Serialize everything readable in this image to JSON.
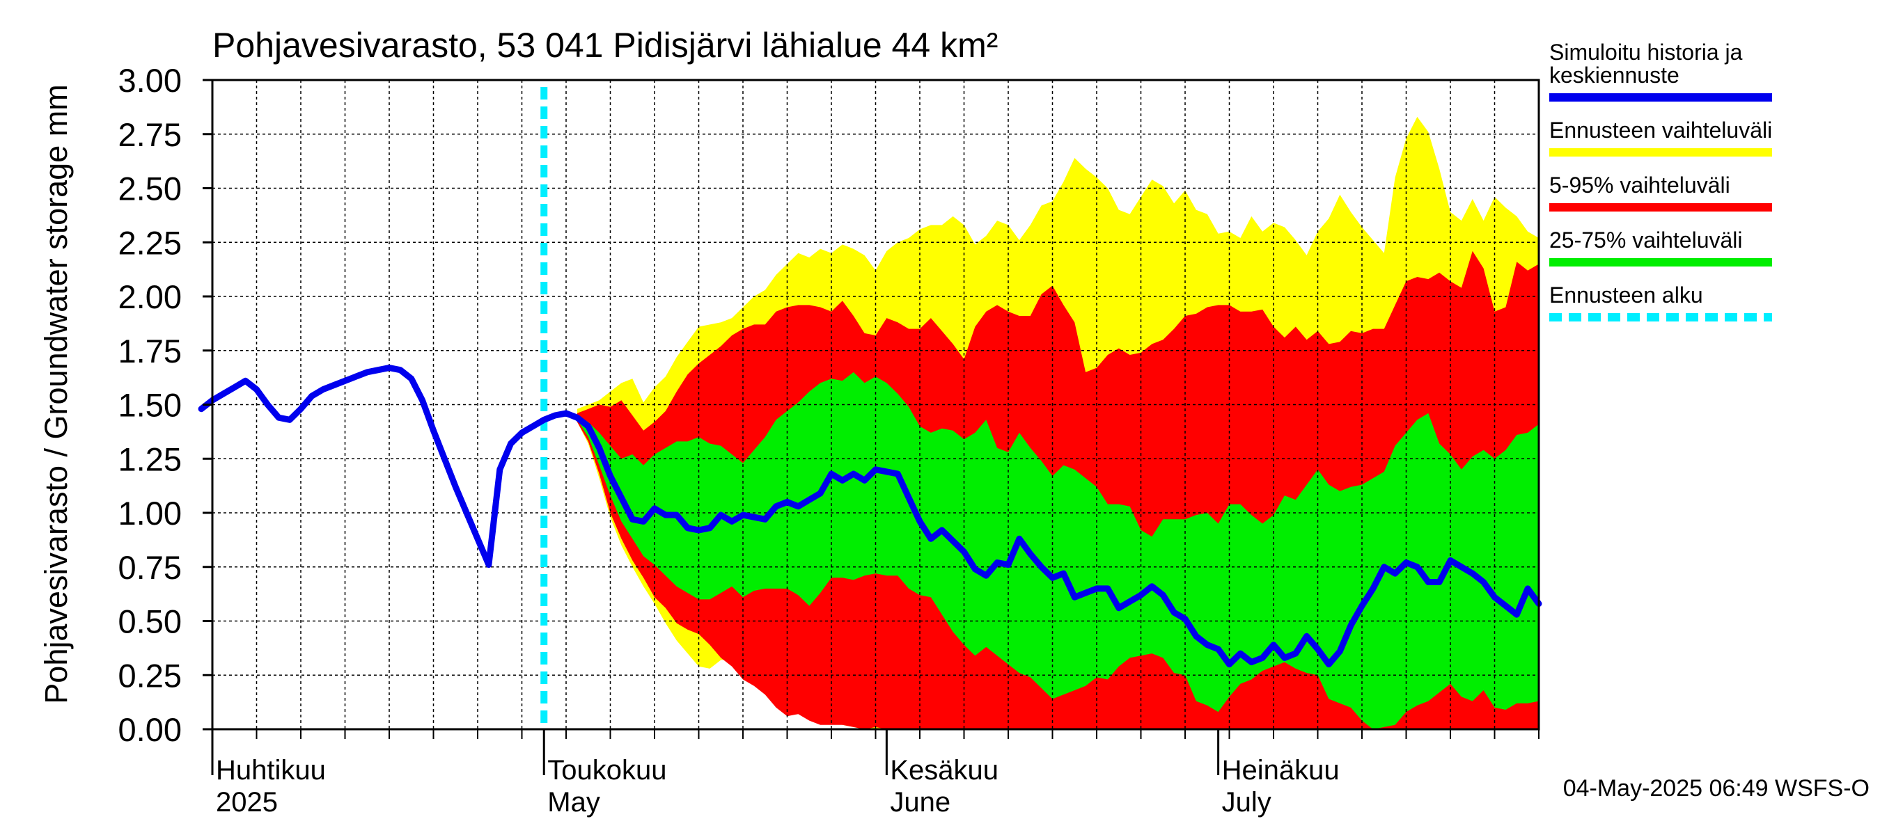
{
  "chart_data": {
    "type": "area",
    "title": "Pohjavesivarasto, 53 041 Pidisjärvi lähialue 44 km²",
    "ylabel": "Pohjavesivarasto / Groundwater storage   mm",
    "ylim": [
      0,
      3
    ],
    "yticks": [
      "0.00",
      "0.25",
      "0.50",
      "0.75",
      "1.00",
      "1.25",
      "1.50",
      "1.75",
      "2.00",
      "2.25",
      "2.50",
      "2.75",
      "3.00"
    ],
    "xlim": [
      0,
      120
    ],
    "grid": true,
    "months": [
      {
        "day": 0,
        "label1": "Huhtikuu",
        "label2": "2025"
      },
      {
        "day": 30,
        "label1": "Toukokuu",
        "label2": "May"
      },
      {
        "day": 61,
        "label1": "Kesäkuu",
        "label2": "June"
      },
      {
        "day": 91,
        "label1": "Heinäkuu",
        "label2": "July"
      }
    ],
    "forecast_start_day": 30,
    "legend_position": "right",
    "legend": [
      {
        "label": "Simuloitu historia ja keskiennuste",
        "line1": "Simuloitu historia ja",
        "line2": "keskiennuste",
        "color": "#0000ee",
        "style": "solid"
      },
      {
        "label": "Ennusteen vaihteluväli",
        "color": "#ffff00",
        "style": "solid"
      },
      {
        "label": "5-95% vaihteluväli",
        "color": "#ff0000",
        "style": "solid"
      },
      {
        "label": "25-75% vaihteluväli",
        "color": "#00ee00",
        "style": "solid"
      },
      {
        "label": "Ennusteen alku",
        "color": "#00eeff",
        "style": "dashed"
      }
    ],
    "timestamp": "04-May-2025 06:49 WSFS-O",
    "history": {
      "x": [
        -1,
        0,
        1,
        2,
        3,
        4,
        5,
        6,
        7,
        8,
        9,
        10,
        11,
        12,
        13,
        14,
        15,
        16,
        17,
        18,
        19,
        20,
        21,
        22,
        23,
        24,
        25,
        26,
        27,
        28,
        29,
        30,
        31,
        32,
        33
      ],
      "y": [
        1.48,
        1.52,
        1.55,
        1.58,
        1.61,
        1.57,
        1.5,
        1.44,
        1.43,
        1.48,
        1.54,
        1.57,
        1.59,
        1.61,
        1.63,
        1.65,
        1.66,
        1.67,
        1.66,
        1.62,
        1.52,
        1.38,
        1.25,
        1.12,
        1.0,
        0.88,
        0.76,
        1.2,
        1.32,
        1.37,
        1.4,
        1.43,
        1.45,
        1.46,
        1.44
      ]
    },
    "forecast": {
      "x": [
        33,
        34,
        35,
        36,
        37,
        38,
        39,
        40,
        41,
        42,
        43,
        44,
        45,
        46,
        47,
        48,
        49,
        50,
        51,
        52,
        53,
        54,
        55,
        56,
        57,
        58,
        59,
        60,
        61,
        62,
        63,
        64,
        65,
        66,
        67,
        68,
        69,
        70,
        71,
        72,
        73,
        74,
        75,
        76,
        77,
        78,
        79,
        80,
        81,
        82,
        83,
        84,
        85,
        86,
        87,
        88,
        89,
        90,
        91,
        92,
        93,
        94,
        95,
        96,
        97,
        98,
        99,
        100,
        101,
        102,
        103,
        104,
        105,
        106,
        107,
        108,
        109,
        110,
        111,
        112,
        113,
        114,
        115,
        116,
        117,
        118,
        119,
        120
      ],
      "ens_max": [
        1.48,
        1.5,
        1.52,
        1.56,
        1.6,
        1.62,
        1.51,
        1.58,
        1.63,
        1.72,
        1.79,
        1.86,
        1.87,
        1.88,
        1.9,
        1.95,
        2.0,
        2.03,
        2.1,
        2.15,
        2.2,
        2.18,
        2.22,
        2.2,
        2.24,
        2.22,
        2.19,
        2.12,
        2.21,
        2.25,
        2.27,
        2.31,
        2.33,
        2.33,
        2.37,
        2.33,
        2.24,
        2.28,
        2.35,
        2.33,
        2.26,
        2.33,
        2.42,
        2.44,
        2.53,
        2.64,
        2.59,
        2.55,
        2.5,
        2.4,
        2.38,
        2.46,
        2.54,
        2.51,
        2.43,
        2.49,
        2.4,
        2.38,
        2.29,
        2.3,
        2.27,
        2.37,
        2.3,
        2.34,
        2.32,
        2.26,
        2.19,
        2.3,
        2.36,
        2.47,
        2.39,
        2.32,
        2.26,
        2.2,
        2.55,
        2.73,
        2.83,
        2.76,
        2.59,
        2.39,
        2.35,
        2.45,
        2.35,
        2.46,
        2.41,
        2.37,
        2.3,
        2.27
      ],
      "p95": [
        1.46,
        1.48,
        1.5,
        1.49,
        1.52,
        1.45,
        1.38,
        1.42,
        1.47,
        1.56,
        1.64,
        1.69,
        1.73,
        1.77,
        1.82,
        1.85,
        1.87,
        1.87,
        1.93,
        1.95,
        1.96,
        1.96,
        1.95,
        1.93,
        1.98,
        1.91,
        1.83,
        1.82,
        1.9,
        1.88,
        1.85,
        1.85,
        1.9,
        1.84,
        1.78,
        1.71,
        1.86,
        1.93,
        1.96,
        1.93,
        1.91,
        1.91,
        2.01,
        2.05,
        1.96,
        1.88,
        1.65,
        1.67,
        1.73,
        1.76,
        1.73,
        1.74,
        1.78,
        1.8,
        1.85,
        1.91,
        1.92,
        1.95,
        1.96,
        1.96,
        1.93,
        1.93,
        1.94,
        1.86,
        1.81,
        1.86,
        1.8,
        1.84,
        1.78,
        1.79,
        1.84,
        1.83,
        1.85,
        1.85,
        1.96,
        2.07,
        2.09,
        2.08,
        2.11,
        2.07,
        2.04,
        2.21,
        2.13,
        1.93,
        1.95,
        2.16,
        2.12,
        2.15
      ],
      "p75": [
        1.45,
        1.42,
        1.37,
        1.31,
        1.25,
        1.27,
        1.22,
        1.27,
        1.3,
        1.33,
        1.33,
        1.35,
        1.32,
        1.31,
        1.27,
        1.23,
        1.29,
        1.35,
        1.43,
        1.47,
        1.51,
        1.56,
        1.6,
        1.62,
        1.61,
        1.65,
        1.6,
        1.63,
        1.6,
        1.55,
        1.49,
        1.4,
        1.37,
        1.39,
        1.38,
        1.34,
        1.37,
        1.43,
        1.3,
        1.28,
        1.37,
        1.3,
        1.24,
        1.17,
        1.22,
        1.2,
        1.16,
        1.12,
        1.04,
        1.04,
        1.03,
        0.92,
        0.89,
        0.97,
        0.97,
        0.97,
        0.99,
        1.0,
        0.95,
        1.04,
        1.04,
        0.99,
        0.95,
        0.99,
        1.08,
        1.06,
        1.13,
        1.2,
        1.13,
        1.1,
        1.12,
        1.13,
        1.16,
        1.19,
        1.31,
        1.37,
        1.43,
        1.46,
        1.32,
        1.27,
        1.2,
        1.26,
        1.29,
        1.25,
        1.29,
        1.36,
        1.37,
        1.41
      ],
      "mean": [
        1.44,
        1.4,
        1.3,
        1.17,
        1.07,
        0.97,
        0.96,
        1.02,
        0.99,
        0.99,
        0.93,
        0.92,
        0.93,
        0.99,
        0.96,
        0.99,
        0.98,
        0.97,
        1.03,
        1.05,
        1.03,
        1.06,
        1.09,
        1.18,
        1.15,
        1.18,
        1.15,
        1.2,
        1.19,
        1.18,
        1.07,
        0.96,
        0.88,
        0.92,
        0.87,
        0.82,
        0.74,
        0.71,
        0.77,
        0.76,
        0.88,
        0.81,
        0.75,
        0.7,
        0.72,
        0.61,
        0.63,
        0.65,
        0.65,
        0.56,
        0.59,
        0.62,
        0.66,
        0.62,
        0.54,
        0.51,
        0.43,
        0.39,
        0.37,
        0.3,
        0.35,
        0.31,
        0.33,
        0.39,
        0.33,
        0.35,
        0.43,
        0.37,
        0.3,
        0.36,
        0.48,
        0.57,
        0.65,
        0.75,
        0.72,
        0.77,
        0.75,
        0.68,
        0.68,
        0.78,
        0.75,
        0.72,
        0.68,
        0.61,
        0.57,
        0.53,
        0.65,
        0.58
      ],
      "p25": [
        1.43,
        1.35,
        1.22,
        1.08,
        0.96,
        0.88,
        0.8,
        0.76,
        0.71,
        0.66,
        0.63,
        0.6,
        0.6,
        0.63,
        0.66,
        0.61,
        0.64,
        0.65,
        0.65,
        0.65,
        0.62,
        0.57,
        0.63,
        0.7,
        0.7,
        0.69,
        0.71,
        0.72,
        0.71,
        0.71,
        0.65,
        0.62,
        0.61,
        0.53,
        0.45,
        0.39,
        0.34,
        0.38,
        0.34,
        0.3,
        0.26,
        0.24,
        0.19,
        0.14,
        0.16,
        0.18,
        0.2,
        0.24,
        0.23,
        0.29,
        0.33,
        0.34,
        0.35,
        0.33,
        0.26,
        0.25,
        0.13,
        0.11,
        0.08,
        0.15,
        0.21,
        0.23,
        0.27,
        0.29,
        0.31,
        0.28,
        0.26,
        0.25,
        0.14,
        0.12,
        0.1,
        0.04,
        0.0,
        0.01,
        0.02,
        0.08,
        0.11,
        0.13,
        0.17,
        0.21,
        0.15,
        0.13,
        0.18,
        0.1,
        0.09,
        0.12,
        0.12,
        0.13
      ],
      "p05": [
        1.42,
        1.33,
        1.18,
        1.0,
        0.88,
        0.78,
        0.7,
        0.61,
        0.56,
        0.49,
        0.46,
        0.44,
        0.39,
        0.33,
        0.29,
        0.23,
        0.2,
        0.16,
        0.1,
        0.06,
        0.07,
        0.04,
        0.02,
        0.02,
        0.02,
        0.01,
        0.0,
        0.01,
        0.0,
        0.0,
        0.0,
        0.0,
        0.0,
        0.0,
        0.0,
        0.0,
        0.0,
        0.0,
        0.0,
        0.0,
        0.0,
        0.0,
        0.0,
        0.0,
        0.0,
        0.0,
        0.0,
        0.0,
        0.0,
        0.0,
        0.0,
        0.0,
        0.0,
        0.0,
        0.0,
        0.0,
        0.0,
        0.0,
        0.0,
        0.0,
        0.0,
        0.0,
        0.0,
        0.0,
        0.0,
        0.0,
        0.0,
        0.0,
        0.0,
        0.0,
        0.0,
        0.0,
        0.0,
        0.0,
        0.0,
        0.0,
        0.0,
        0.0,
        0.0,
        0.0,
        0.0,
        0.0,
        0.0,
        0.0,
        0.0,
        0.0,
        0.0,
        0.0
      ],
      "ens_min": [
        1.42,
        1.32,
        1.16,
        0.98,
        0.85,
        0.75,
        0.66,
        0.58,
        0.49,
        0.41,
        0.35,
        0.29,
        0.28,
        0.32,
        0.32,
        0.26,
        0.28,
        0.23,
        0.17,
        0.15,
        0.1,
        0.07,
        0.05,
        0.03,
        0.02,
        0.01,
        0.0,
        0.0,
        0.0,
        0.0,
        0.0,
        0.0,
        0.0,
        0.0,
        0.0,
        0.0,
        0.0,
        0.0,
        0.0,
        0.0,
        0.0,
        0.0,
        0.0,
        0.0,
        0.0,
        0.0,
        0.0,
        0.0,
        0.0,
        0.0,
        0.0,
        0.0,
        0.0,
        0.0,
        0.0,
        0.0,
        0.0,
        0.0,
        0.0,
        0.0,
        0.0,
        0.0,
        0.0,
        0.0,
        0.0,
        0.0,
        0.0,
        0.0,
        0.0,
        0.0,
        0.0,
        0.0,
        0.0,
        0.0,
        0.0,
        0.0,
        0.0,
        0.0,
        0.0,
        0.0,
        0.0,
        0.0,
        0.0,
        0.0,
        0.0,
        0.0,
        0.0,
        0.0
      ]
    }
  }
}
